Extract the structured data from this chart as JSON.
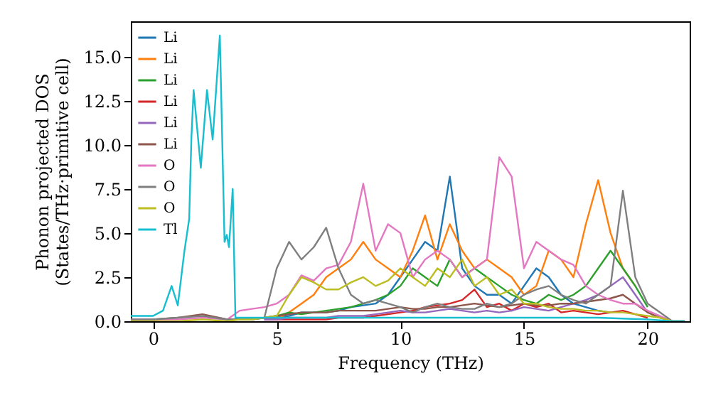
{
  "chart_data": {
    "type": "line",
    "xlabel": "Frequency (THz)",
    "ylabel": "Phonon projected DOS\n(States/THz·primitive cell)",
    "x": [
      -0.9,
      0,
      1,
      2,
      3,
      3.5,
      4,
      4.5,
      5,
      5.5,
      6,
      6.5,
      7,
      7.5,
      8,
      8.5,
      9,
      9.5,
      10,
      10.5,
      11,
      11.5,
      12,
      12.5,
      13,
      13.5,
      14,
      14.5,
      15,
      15.5,
      16,
      16.5,
      17,
      17.5,
      18,
      18.5,
      19,
      19.5,
      20,
      20.5,
      21,
      21.5
    ],
    "xlim": [
      -0.9,
      21.7
    ],
    "ylim": [
      0,
      17
    ],
    "xticks": [
      0,
      5,
      10,
      15,
      20
    ],
    "yticks": [
      {
        "value": 0,
        "label": "0.0"
      },
      {
        "value": 2.5,
        "label": "2.5"
      },
      {
        "value": 5,
        "label": "5.0"
      },
      {
        "value": 7.5,
        "label": "7.5"
      },
      {
        "value": 10,
        "label": "10.0"
      },
      {
        "value": 12.5,
        "label": "12.5"
      },
      {
        "value": 15,
        "label": "15.0"
      }
    ],
    "legend": "top left",
    "grid": false,
    "series": [
      {
        "name": "Li",
        "color": "#1f77b4",
        "values": [
          null,
          null,
          null,
          null,
          null,
          null,
          null,
          0.1,
          0.2,
          0.3,
          0.5,
          0.5,
          0.5,
          0.6,
          0.8,
          0.9,
          1.0,
          1.5,
          2.5,
          3.5,
          4.5,
          4.0,
          8.2,
          3.0,
          2.0,
          1.5,
          1.5,
          1.0,
          2.0,
          3.0,
          2.5,
          1.5,
          1.0,
          0.8,
          0.6,
          0.5,
          null,
          null,
          null,
          null,
          null,
          null
        ]
      },
      {
        "name": "Li",
        "color": "#ff7f0e",
        "values": [
          null,
          null,
          null,
          null,
          null,
          null,
          null,
          0.1,
          0.1,
          0.5,
          1.0,
          1.5,
          2.5,
          3.0,
          3.5,
          4.5,
          3.5,
          3.0,
          2.5,
          4.0,
          6.0,
          3.5,
          5.5,
          4.0,
          3.0,
          3.5,
          3.0,
          2.5,
          1.5,
          2.0,
          4.0,
          3.5,
          2.5,
          5.5,
          8.0,
          5.0,
          3.0,
          2.0,
          null,
          null,
          null,
          null
        ]
      },
      {
        "name": "Li",
        "color": "#2ca02c",
        "values": [
          null,
          null,
          null,
          null,
          null,
          null,
          null,
          0.2,
          0.3,
          0.5,
          0.4,
          0.5,
          0.6,
          0.7,
          0.8,
          1.0,
          1.2,
          1.5,
          2.0,
          3.0,
          2.5,
          2.0,
          3.5,
          2.5,
          3.0,
          2.5,
          2.0,
          1.5,
          1.2,
          1.0,
          1.5,
          1.2,
          1.5,
          2.0,
          3.0,
          4.0,
          3.0,
          2.0,
          0.8,
          null,
          null,
          null
        ]
      },
      {
        "name": "Li",
        "color": "#d62728",
        "values": [
          null,
          null,
          null,
          null,
          null,
          null,
          null,
          0.1,
          0.1,
          0.1,
          0.1,
          0.1,
          0.1,
          0.2,
          0.2,
          0.2,
          0.3,
          0.4,
          0.5,
          0.6,
          0.8,
          0.9,
          1.0,
          1.2,
          1.8,
          0.8,
          1.0,
          0.6,
          1.0,
          0.8,
          1.0,
          0.5,
          0.6,
          0.5,
          0.4,
          0.5,
          0.6,
          0.4,
          0.2,
          null,
          null,
          null
        ]
      },
      {
        "name": "Li",
        "color": "#9467bd",
        "values": [
          null,
          null,
          null,
          null,
          null,
          null,
          null,
          0.1,
          0.1,
          0.2,
          0.2,
          0.2,
          0.2,
          0.3,
          0.3,
          0.3,
          0.4,
          0.5,
          0.6,
          0.5,
          0.5,
          0.6,
          0.7,
          0.6,
          0.5,
          0.6,
          0.5,
          0.6,
          0.8,
          0.7,
          0.6,
          0.8,
          1.0,
          1.2,
          1.5,
          2.0,
          2.5,
          1.5,
          0.5,
          null,
          null,
          null
        ]
      },
      {
        "name": "Li",
        "color": "#8c564b",
        "values": [
          0.1,
          0.1,
          0.2,
          0.4,
          0.1,
          0.1,
          0.1,
          0.2,
          0.3,
          0.4,
          0.5,
          0.5,
          0.5,
          0.6,
          0.6,
          0.6,
          0.6,
          0.7,
          0.8,
          0.7,
          0.7,
          0.8,
          0.8,
          0.9,
          1.0,
          0.9,
          0.8,
          0.9,
          1.0,
          0.9,
          0.9,
          1.0,
          1.0,
          1.1,
          1.2,
          1.3,
          1.5,
          1.0,
          0.5,
          0.2,
          0,
          0
        ]
      },
      {
        "name": "O",
        "color": "#e377c2",
        "values": [
          0.1,
          0.1,
          0.1,
          0.2,
          0.1,
          0.6,
          0.7,
          0.8,
          1.0,
          1.5,
          2.6,
          2.3,
          3.0,
          3.2,
          4.5,
          7.8,
          4.0,
          5.5,
          5.0,
          2.5,
          3.5,
          4.0,
          3.5,
          2.5,
          3.0,
          3.5,
          9.3,
          8.2,
          3.0,
          4.5,
          4.0,
          3.5,
          3.2,
          2.0,
          1.5,
          1.2,
          1.0,
          1.0,
          0.6,
          0.3,
          0,
          0
        ]
      },
      {
        "name": "O",
        "color": "#7f7f7f",
        "values": [
          0.1,
          0.1,
          0.2,
          0.3,
          0.1,
          0.1,
          0.1,
          0.2,
          3.0,
          4.5,
          3.5,
          4.2,
          5.3,
          3.0,
          1.5,
          1.0,
          1.2,
          1.0,
          0.8,
          0.5,
          0.8,
          1.0,
          0.8,
          0.7,
          0.7,
          1.0,
          0.8,
          1.0,
          1.5,
          1.8,
          2.0,
          1.5,
          1.2,
          1.0,
          1.5,
          2.0,
          7.4,
          2.5,
          1.0,
          0.5,
          0,
          0
        ]
      },
      {
        "name": "O",
        "color": "#bcbd22",
        "values": [
          0,
          0,
          0,
          0.1,
          0,
          0.1,
          0.1,
          0.2,
          0.3,
          1.5,
          2.5,
          2.2,
          1.8,
          1.8,
          2.2,
          2.5,
          2.0,
          2.3,
          3.0,
          2.5,
          2.0,
          3.0,
          2.5,
          3.5,
          2.0,
          2.5,
          1.5,
          1.8,
          1.0,
          1.0,
          0.8,
          0.7,
          0.7,
          0.6,
          0.6,
          0.5,
          0.5,
          0.4,
          0.3,
          0.2,
          0,
          0
        ]
      },
      {
        "name": "Tl",
        "color": "#17becf",
        "x": [
          -0.9,
          -0.5,
          0,
          0.4,
          0.75,
          1.0,
          1.26,
          1.46,
          1.55,
          1.64,
          1.93,
          2.18,
          2.41,
          2.7,
          2.89,
          2.98,
          3.07,
          3.22,
          3.33,
          4,
          6,
          8,
          10,
          12,
          14,
          16,
          18,
          20,
          21,
          21.5
        ],
        "values": [
          0.3,
          0.3,
          0.3,
          0.6,
          2.0,
          0.9,
          3.9,
          5.8,
          10.4,
          13.1,
          8.7,
          13.1,
          10.3,
          16.2,
          4.5,
          4.9,
          4.2,
          7.5,
          0.2,
          0.2,
          0.2,
          0.2,
          0.2,
          0.2,
          0.2,
          0.2,
          0.2,
          0.1,
          0,
          0
        ]
      }
    ]
  }
}
